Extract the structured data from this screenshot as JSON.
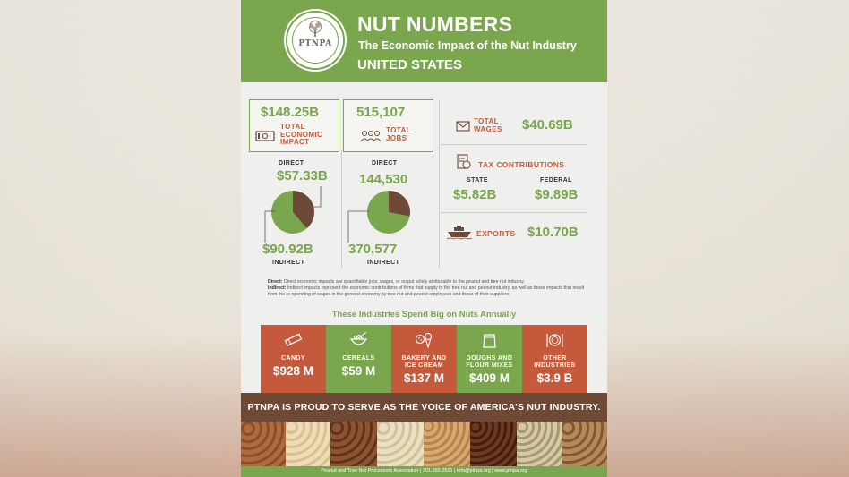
{
  "header": {
    "title": "NUT NUMBERS",
    "subtitle": "The Economic Impact of the Nut Industry",
    "country": "UNITED STATES",
    "logo_text": "PTNPA",
    "logo_ring_text": "PEANUT AND TREE NUT PROCESSORS ASSOCIATION"
  },
  "economic": {
    "total_value": "$148.25B",
    "total_label_1": "TOTAL",
    "total_label_2": "ECONOMIC",
    "total_label_3": "IMPACT",
    "direct_label": "DIRECT",
    "direct_value": "$57.33B",
    "indirect_value": "$90.92B",
    "indirect_label": "INDIRECT",
    "direct_share": 0.387
  },
  "jobs": {
    "total_value": "515,107",
    "total_label_1": "TOTAL",
    "total_label_2": "JOBS",
    "direct_label": "DIRECT",
    "direct_value": "144,530",
    "indirect_value": "370,577",
    "indirect_label": "INDIRECT",
    "direct_share": 0.281
  },
  "wages": {
    "label_1": "TOTAL",
    "label_2": "WAGES",
    "value": "$40.69B"
  },
  "tax": {
    "label": "TAX CONTRIBUTIONS",
    "state_label": "STATE",
    "state_value": "$5.82B",
    "federal_label": "FEDERAL",
    "federal_value": "$9.89B"
  },
  "exports": {
    "label": "EXPORTS",
    "value": "$10.70B"
  },
  "notes": {
    "direct_term": "Direct:",
    "direct_text": "Direct economic impacts are quantifiable jobs, wages, or output solely attributable to the peanut and tree nut industry.",
    "indirect_term": "Indirect:",
    "indirect_text": "Indirect impacts represent the economic contributions of firms that supply to the tree nut and peanut industry, as well as those impacts that result from the re-spending of wages in the general economy by tree nut and peanut employees and those of their suppliers."
  },
  "industries": {
    "title": "These Industries Spend Big on Nuts Annually",
    "items": [
      {
        "label_1": "CANDY",
        "label_2": "",
        "value": "$928 M",
        "color": "#c45a3b",
        "icon": "candy-bar-icon"
      },
      {
        "label_1": "CEREALS",
        "label_2": "",
        "value": "$59 M",
        "color": "#7aa64d",
        "icon": "cereal-bowl-icon"
      },
      {
        "label_1": "BAKERY AND",
        "label_2": "ICE CREAM",
        "value": "$137 M",
        "color": "#c45a3b",
        "icon": "cookie-icecream-icon"
      },
      {
        "label_1": "DOUGHS AND",
        "label_2": "FLOUR MIXES",
        "value": "$409 M",
        "color": "#7aa64d",
        "icon": "flour-bag-icon"
      },
      {
        "label_1": "OTHER",
        "label_2": "INDUSTRIES",
        "value": "$3.9 B",
        "color": "#c45a3b",
        "icon": "plate-utensils-icon"
      }
    ]
  },
  "banner": {
    "text": "PTNPA IS PROUD TO SERVE AS THE VOICE OF AMERICA'S NUT INDUSTRY."
  },
  "footer": {
    "text": "Peanut and Tree Nut Processors Association  |  301.365.2521  |  info@ptnpa.org  |  www.ptnpa.org"
  },
  "colors": {
    "green": "#7aa64d",
    "rust": "#c45a3b",
    "brown": "#6e4a36",
    "pie_dark": "#6e4a36"
  }
}
